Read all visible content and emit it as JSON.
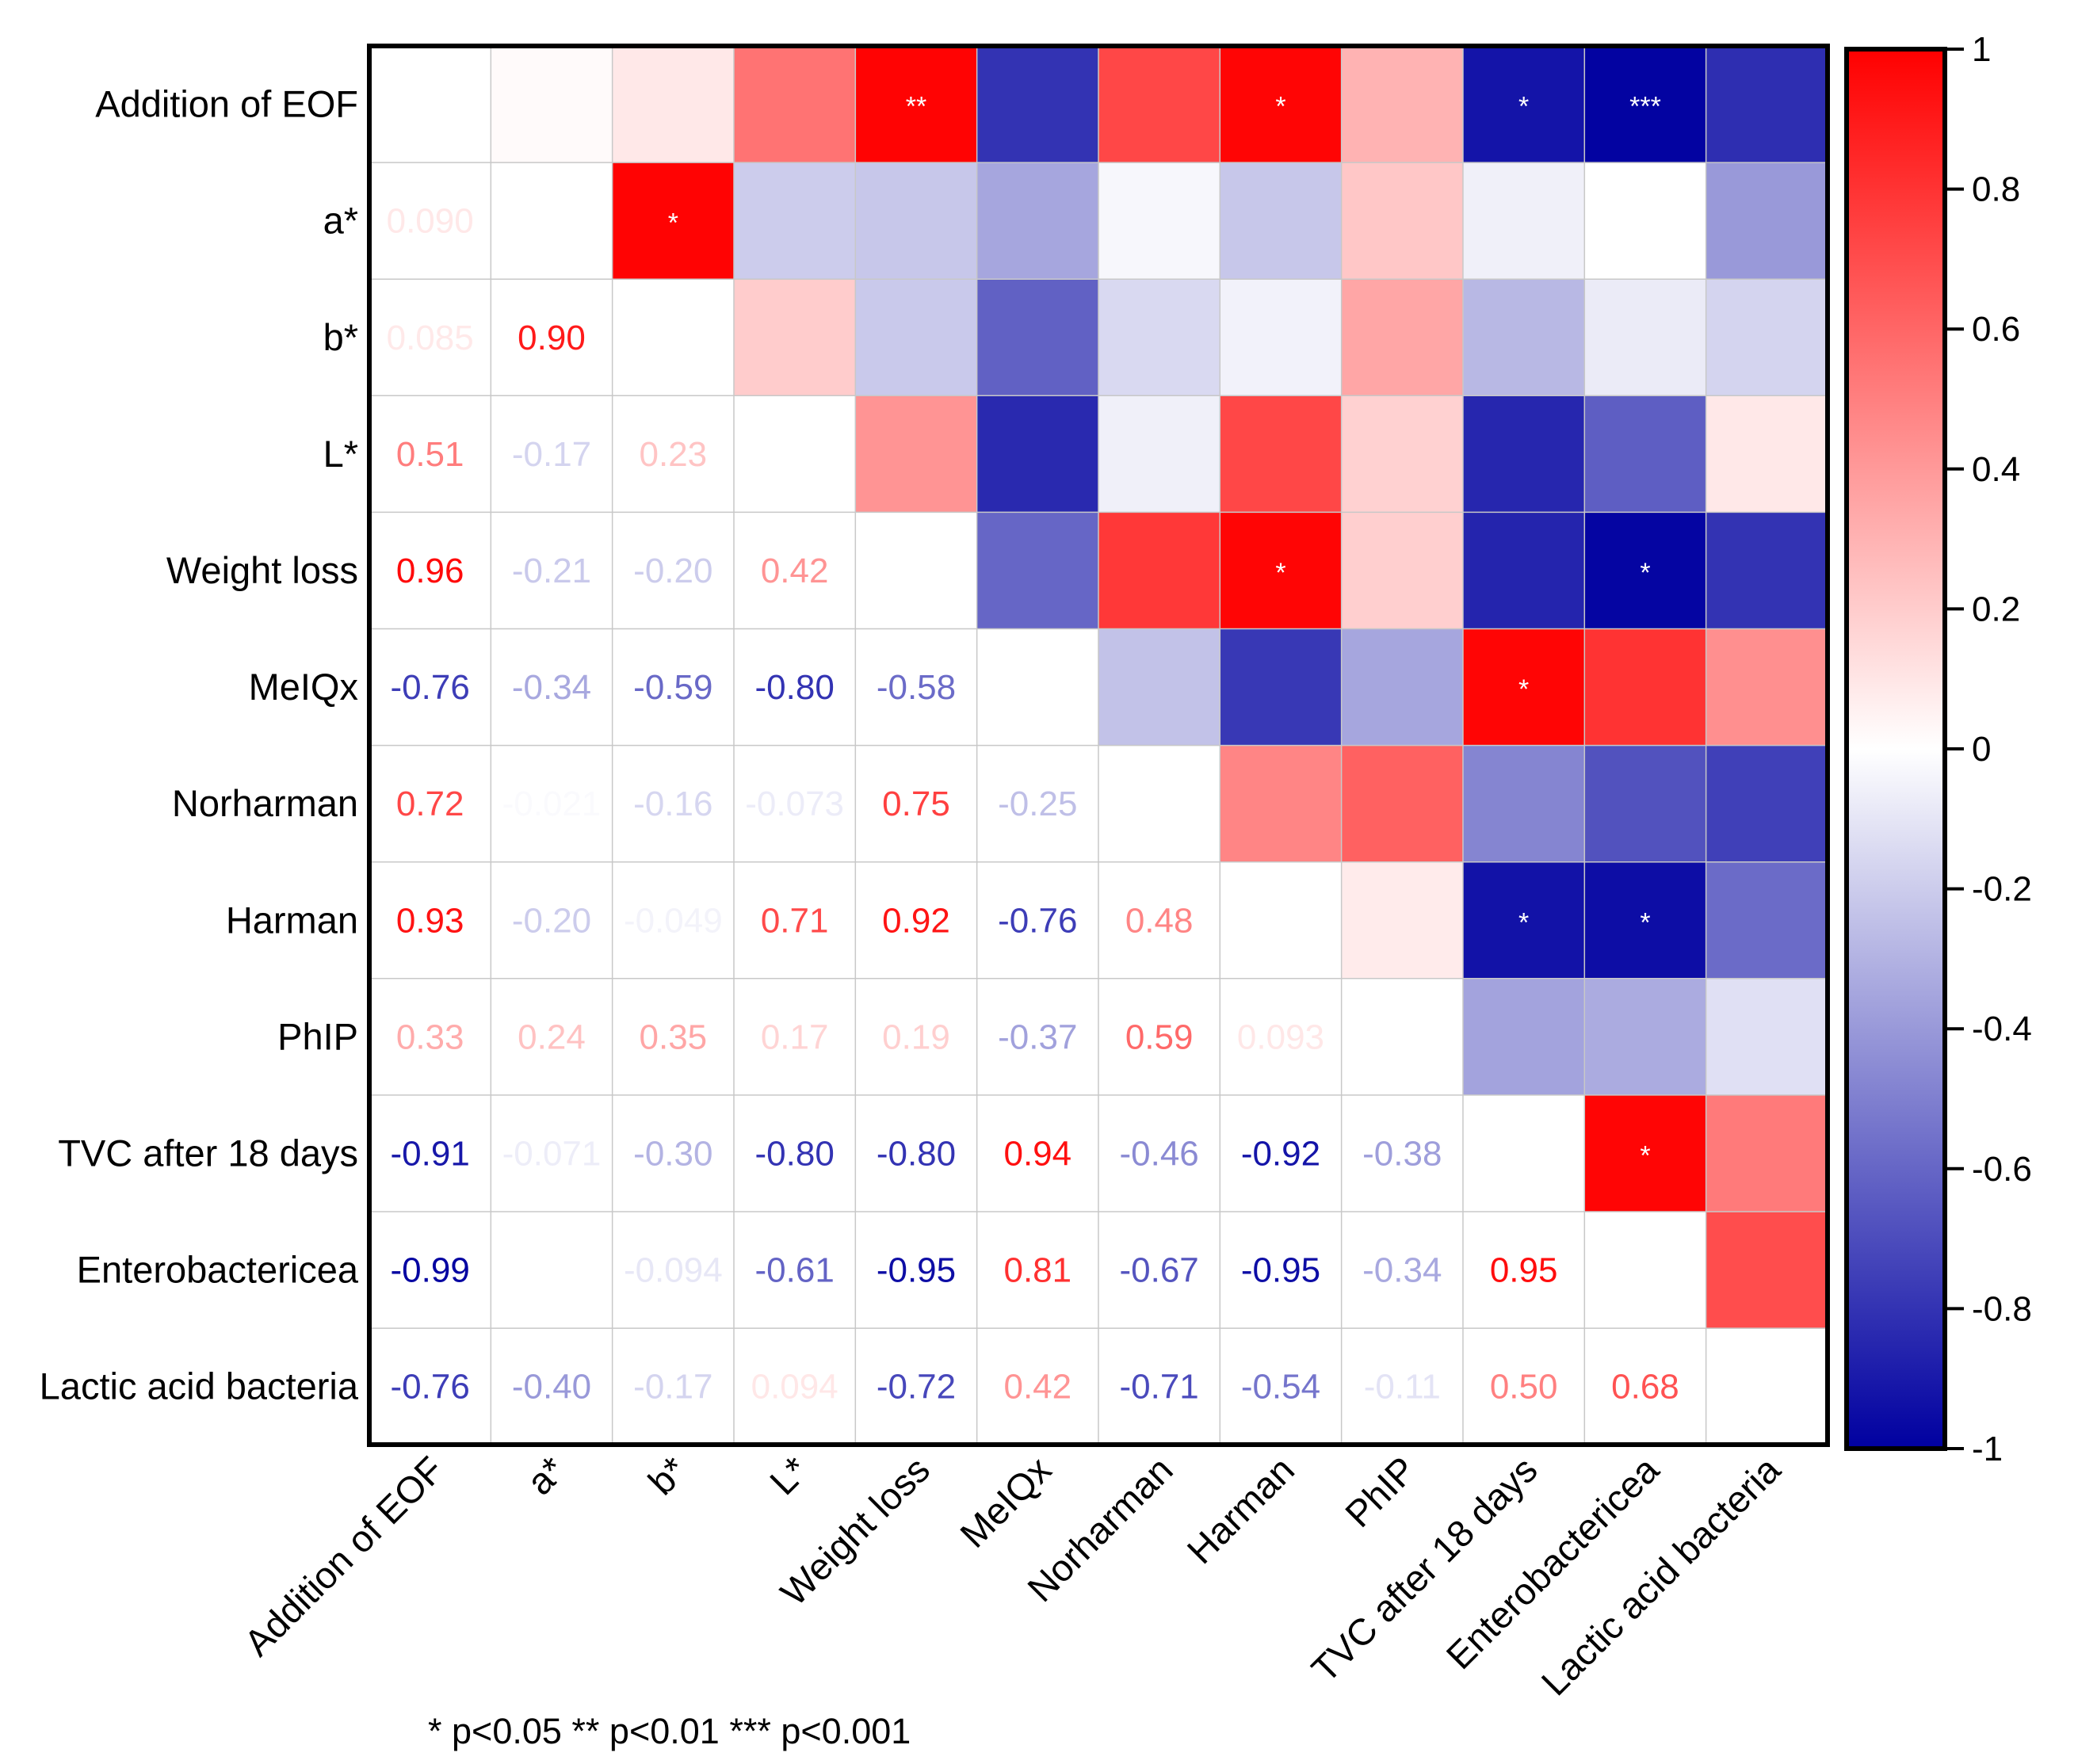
{
  "chart_data": {
    "type": "heatmap",
    "title": "",
    "variables": [
      "Addition of EOF",
      "a*",
      "b*",
      "L*",
      "Weight loss",
      "MeIQx",
      "Norharman",
      "Harman",
      "PhIP",
      "TVC after 18 days",
      "Enterobactericea",
      "Lactic acid bacteria"
    ],
    "lower_triangle_values": [
      [],
      [
        "0.090"
      ],
      [
        "0.085",
        "0.90"
      ],
      [
        "0.51",
        "-0.17",
        "0.23"
      ],
      [
        "0.96",
        "-0.21",
        "-0.20",
        "0.42"
      ],
      [
        "-0.76",
        "-0.34",
        "-0.59",
        "-0.80",
        "-0.58"
      ],
      [
        "0.72",
        "-0.021",
        "-0.16",
        "-0.073",
        "0.75",
        "-0.25"
      ],
      [
        "0.93",
        "-0.20",
        "-0.049",
        "0.71",
        "0.92",
        "-0.76",
        "0.48"
      ],
      [
        "0.33",
        "0.24",
        "0.35",
        "0.17",
        "0.19",
        "-0.37",
        "0.59",
        "0.093"
      ],
      [
        "-0.91",
        "-0.071",
        "-0.30",
        "-0.80",
        "-0.80",
        "0.94",
        "-0.46",
        "-0.92",
        "-0.38"
      ],
      [
        "-0.99",
        "",
        "-0.094",
        "-0.61",
        "-0.95",
        "0.81",
        "-0.67",
        "-0.95",
        "-0.34",
        "0.95"
      ],
      [
        "-0.76",
        "-0.40",
        "-0.17",
        "0.094",
        "-0.72",
        "0.42",
        "-0.71",
        "-0.54",
        "-0.11",
        "0.50",
        "0.68"
      ]
    ],
    "upper_triangle_colors": [
      [
        null,
        0.02,
        0.09,
        0.55,
        0.99,
        -0.8,
        0.72,
        0.98,
        0.3,
        -0.92,
        -0.99,
        -0.82
      ],
      [
        null,
        null,
        0.99,
        -0.2,
        -0.22,
        -0.35,
        -0.03,
        -0.22,
        0.22,
        -0.06,
        0.0,
        -0.4
      ],
      [
        null,
        null,
        null,
        0.2,
        -0.21,
        -0.62,
        -0.15,
        -0.05,
        0.35,
        -0.28,
        -0.08,
        -0.17
      ],
      [
        null,
        null,
        null,
        null,
        0.42,
        -0.84,
        -0.06,
        0.72,
        0.18,
        -0.85,
        -0.63,
        0.09
      ],
      [
        null,
        null,
        null,
        null,
        null,
        -0.6,
        0.78,
        0.98,
        0.19,
        -0.86,
        -0.98,
        -0.8
      ],
      [
        null,
        null,
        null,
        null,
        null,
        null,
        -0.24,
        -0.78,
        -0.35,
        0.98,
        0.8,
        0.44
      ],
      [
        null,
        null,
        null,
        null,
        null,
        null,
        null,
        0.48,
        0.62,
        -0.48,
        -0.68,
        -0.75
      ],
      [
        null,
        null,
        null,
        null,
        null,
        null,
        null,
        null,
        0.08,
        -0.93,
        -0.95,
        -0.58
      ],
      [
        null,
        null,
        null,
        null,
        null,
        null,
        null,
        null,
        null,
        -0.36,
        -0.33,
        -0.12
      ],
      [
        null,
        null,
        null,
        null,
        null,
        null,
        null,
        null,
        null,
        null,
        0.98,
        0.52
      ],
      [
        null,
        null,
        null,
        null,
        null,
        null,
        null,
        null,
        null,
        null,
        null,
        0.7
      ],
      [
        null,
        null,
        null,
        null,
        null,
        null,
        null,
        null,
        null,
        null,
        null,
        null
      ]
    ],
    "significance": [
      {
        "row": 0,
        "col": 4,
        "mark": "**"
      },
      {
        "row": 0,
        "col": 7,
        "mark": "*"
      },
      {
        "row": 0,
        "col": 9,
        "mark": "*"
      },
      {
        "row": 0,
        "col": 10,
        "mark": "***"
      },
      {
        "row": 1,
        "col": 2,
        "mark": "*"
      },
      {
        "row": 4,
        "col": 7,
        "mark": "*"
      },
      {
        "row": 4,
        "col": 10,
        "mark": "*"
      },
      {
        "row": 5,
        "col": 9,
        "mark": "*"
      },
      {
        "row": 7,
        "col": 9,
        "mark": "*"
      },
      {
        "row": 7,
        "col": 10,
        "mark": "*"
      },
      {
        "row": 9,
        "col": 10,
        "mark": "*"
      }
    ],
    "colorbar": {
      "min": -1,
      "max": 1,
      "ticks": [
        1,
        0.8,
        0.6,
        0.4,
        0.2,
        0,
        -0.2,
        -0.4,
        -0.6,
        -0.8,
        -1
      ],
      "tick_labels": [
        "1",
        "0.8",
        "0.6",
        "0.4",
        "0.2",
        "0",
        "-0.2",
        "-0.4",
        "-0.6",
        "-0.8",
        "-1"
      ]
    },
    "colors": {
      "positive": "#ff0000",
      "neutral": "#ffffff",
      "negative": "#0000a0",
      "grid": "#c8c8c8",
      "frame": "#000000"
    },
    "footnote": "* p<0.05  ** p<0.01  *** p<0.001"
  }
}
